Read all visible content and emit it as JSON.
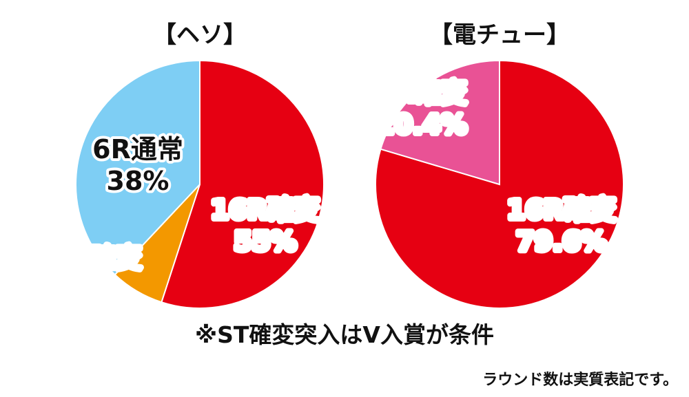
{
  "chart_data": [
    {
      "type": "pie",
      "title": "【ヘソ】",
      "start": "top",
      "direction": "clockwise",
      "slices": [
        {
          "name": "16R確変",
          "value": 55,
          "label": "55%",
          "color": "#e60012",
          "text_color": "#ffffff"
        },
        {
          "name": "6R確変",
          "value": 7,
          "label": "7%",
          "color": "#f39800",
          "text_color": "#ffffff"
        },
        {
          "name": "6R通常",
          "value": 38,
          "label": "38%",
          "color": "#7ecef4",
          "text_color": "#111111"
        }
      ]
    },
    {
      "type": "pie",
      "title": "【電チュー】",
      "start": "top",
      "direction": "clockwise",
      "slices": [
        {
          "name": "16R確変",
          "value": 79.6,
          "label": "79.6%",
          "color": "#e60012",
          "text_color": "#ffffff"
        },
        {
          "name": "4R確変",
          "value": 20.4,
          "label": "20.4%",
          "color": "#e95295",
          "text_color": "#ffffff"
        }
      ]
    }
  ],
  "footnote": "※ST確変突入はV入賞が条件",
  "note": "ラウンド数は実質表記です。"
}
